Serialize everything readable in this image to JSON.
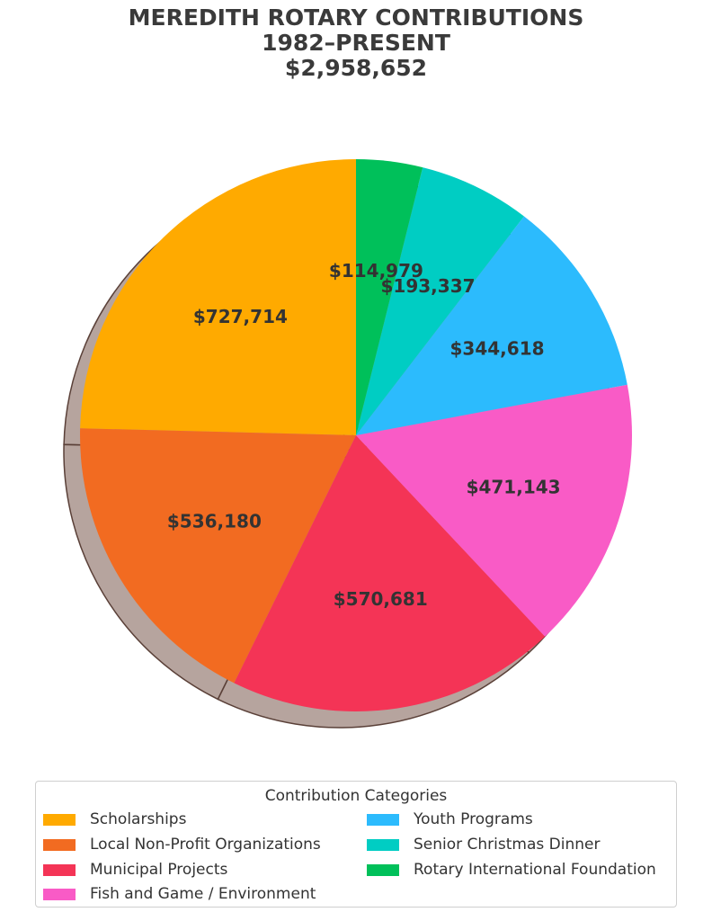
{
  "title": {
    "line1": "MEREDITH ROTARY CONTRIBUTIONS",
    "line2": "1982–PRESENT",
    "line3": "$2,958,652"
  },
  "chart_data": {
    "type": "pie",
    "title": "MEREDITH ROTARY CONTRIBUTIONS 1982–PRESENT $2,958,652",
    "total": 2958652,
    "start": "top, counterclockwise",
    "shadow": true,
    "legend_title": "Contribution Categories",
    "legend_position": "bottom",
    "categories": [
      "Scholarships",
      "Local Non-Profit Organizations",
      "Municipal Projects",
      "Fish and Game / Environment",
      "Youth Programs",
      "Senior Christmas Dinner",
      "Rotary International Foundation"
    ],
    "values": [
      727714,
      536180,
      570681,
      471143,
      344618,
      193337,
      114979
    ],
    "labels": [
      "$727,714",
      "$536,180",
      "$570,681",
      "$471,143",
      "$344,618",
      "$193,337",
      "$114,979"
    ],
    "colors": [
      "#FFAA00",
      "#F26B21",
      "#F43456",
      "#F95BC6",
      "#2CBBFD",
      "#00CDC3",
      "#00C05A"
    ]
  },
  "legend": {
    "title": "Contribution Categories",
    "items": [
      {
        "label": "Scholarships",
        "color": "#FFAA00"
      },
      {
        "label": "Local Non-Profit Organizations",
        "color": "#F26B21"
      },
      {
        "label": "Municipal Projects",
        "color": "#F43456"
      },
      {
        "label": "Fish and Game / Environment",
        "color": "#F95BC6"
      },
      {
        "label": "Youth Programs",
        "color": "#2CBBFD"
      },
      {
        "label": "Senior Christmas Dinner",
        "color": "#00CDC3"
      },
      {
        "label": "Rotary International Foundation",
        "color": "#00C05A"
      }
    ]
  }
}
